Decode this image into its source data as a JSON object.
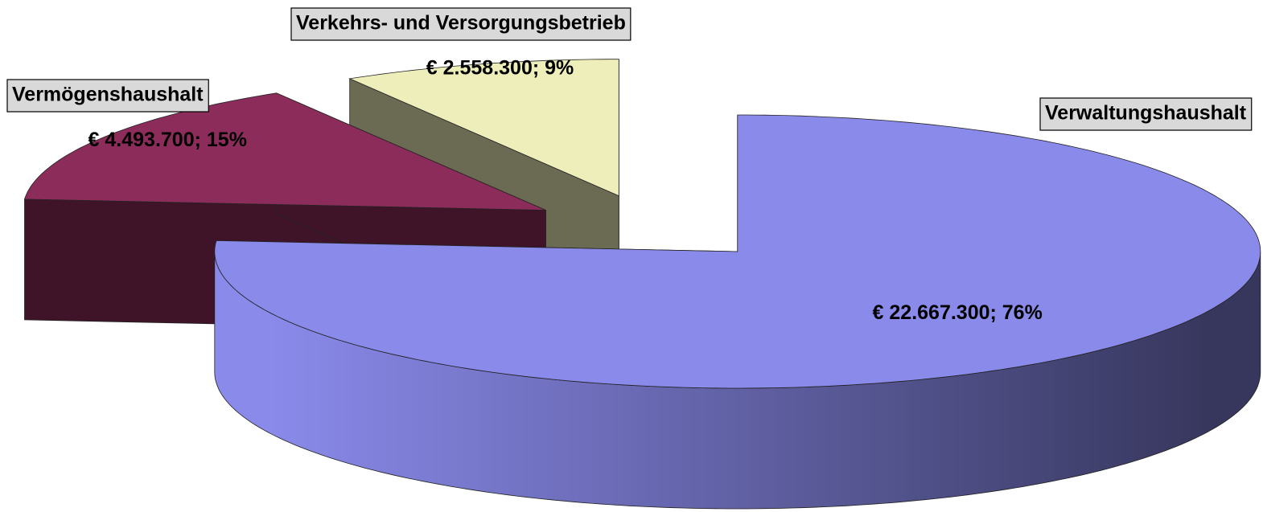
{
  "chart_data": {
    "type": "pie",
    "categories": [
      "Verwaltungshaushalt",
      "Vermögenshaushalt",
      "Verkehrs- und Versorgungsbetrieb"
    ],
    "values": [
      22667300,
      4493700,
      2558300
    ],
    "value_labels": [
      "€ 22.667.300; 76%",
      "€ 4.493.700; 15%",
      "€ 2.558.300; 9%"
    ],
    "colors": [
      "#8a8aeb",
      "#8b2c5a",
      "#eeeebb"
    ]
  }
}
